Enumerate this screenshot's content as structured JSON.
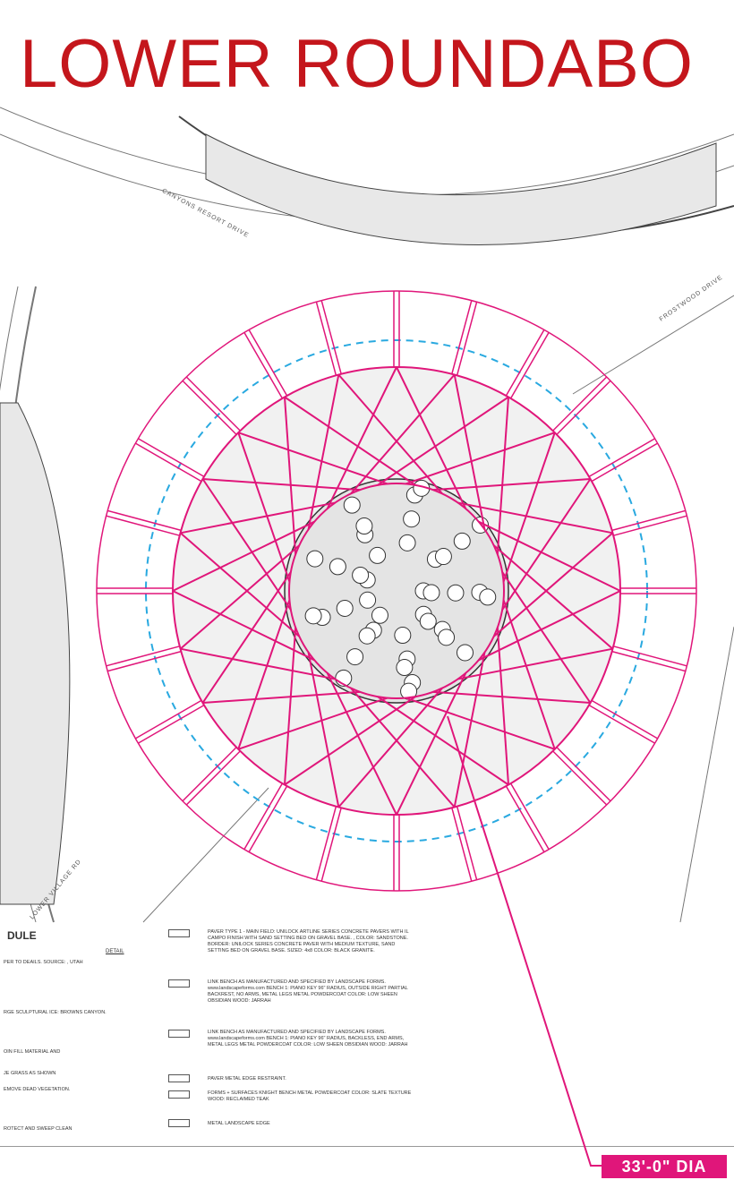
{
  "header": {
    "title": "LOWER ROUNDABO"
  },
  "plan": {
    "labels": [
      "CANYONS RESORT DRIVE",
      "FROSTWOOD DRIVE",
      "LOWER VILLAGE RD"
    ]
  },
  "schedule": {
    "title": "DULE",
    "detail": "DETAIL",
    "notes": [
      "PER TO DEAILS. SOURCE: , UTAH",
      "RGE SCULPTURAL ICE: BROWNS CANYON.",
      "OIN FILL MATERIAL AND",
      "JE GRASS AS SHOWN",
      "EMOVE DEAD VEGETATION.",
      "ROTECT AND SWEEP CLEAN"
    ],
    "items": [
      "PAVER TYPE 1 - MAIN FIELD: UNILOCK ARTLINE SERIES CONCRETE PAVERS WITH IL CAMPO FINISH WITH SAND SETTING BED ON GRAVEL BASE. , COLOR: SANDSTONE. BORDER: UNILOCK SERIES CONCRETE PAVER WITH MEDIUM TEXTURE, SAND SETTING BED ON GRAVEL BASE. SIZED: 4x8 COLOR: BLACK GRANITE.",
      "LINK BENCH AS MANUFACTURED AND SPECIFIED BY LANDSCAPE FORMS. www.landscapeforms.com BENCH 1: PIANO KEY 96\" RADIUS, OUTSIDE RIGHT PARTIAL BACKREST, NO ARMS, METAL LEGS METAL POWDERCOAT COLOR: LOW SHEEN OBSIDIAN WOOD: JARRAH",
      "LINK BENCH AS MANUFACTURED AND SPECIFIED BY LANDSCAPE FORMS. www.landscapeforms.com BENCH 1: PIANO KEY 96\" RADIUS, BACKLESS, END ARMS, METAL LEGS METAL POWDERCOAT COLOR: LOW SHEEN OBSIDIAN WOOD: JARRAH",
      "PAVER METAL EDGE RESTRAINT.",
      "FORMS + SURFACES KNIGHT BENCH METAL POWDERCOAT COLOR: SLATE TEXTURE WOOD: RECLAIMED TEAK",
      "METAL LANDSCAPE EDGE"
    ]
  },
  "callout": {
    "label": "33'-0\" DIA"
  }
}
